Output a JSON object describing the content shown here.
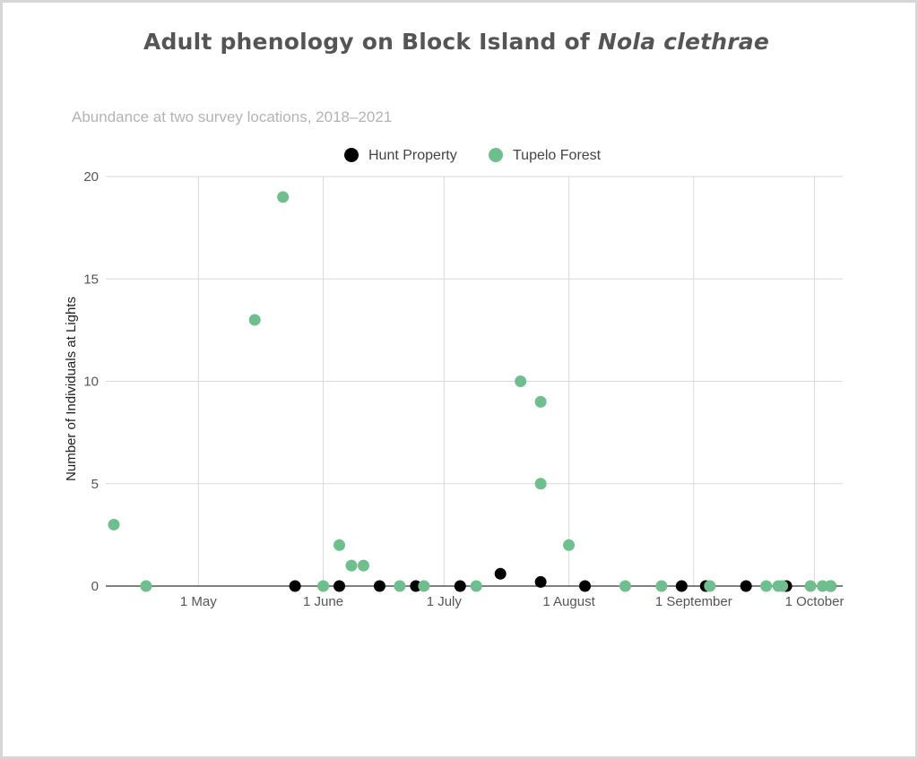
{
  "title_main": "Adult phenology on Block Island of ",
  "title_species": "Nola clethrae",
  "chart_data": {
    "type": "scatter",
    "title": "Adult phenology on Block Island of Nola clethrae",
    "subtitle": "Abundance at two survey locations, 2018–2021",
    "xlabel": "",
    "ylabel": "Number of Individuals at Lights",
    "xlim": [
      "2021-04-08",
      "2021-10-08"
    ],
    "ylim": [
      0,
      20
    ],
    "y_ticks": [
      0,
      5,
      10,
      15,
      20
    ],
    "x_ticks": [
      {
        "date": "2021-05-01",
        "label": "1 May"
      },
      {
        "date": "2021-06-01",
        "label": "1 June"
      },
      {
        "date": "2021-07-01",
        "label": "1 July"
      },
      {
        "date": "2021-08-01",
        "label": "1 August"
      },
      {
        "date": "2021-09-01",
        "label": "1 September"
      },
      {
        "date": "2021-10-01",
        "label": "1 October"
      }
    ],
    "grid": true,
    "legend_position": "top",
    "series": [
      {
        "name": "Hunt Property",
        "color": "#000000",
        "points": [
          {
            "x": "2021-05-25",
            "y": 0
          },
          {
            "x": "2021-06-05",
            "y": 0
          },
          {
            "x": "2021-06-15",
            "y": 0
          },
          {
            "x": "2021-06-24",
            "y": 0
          },
          {
            "x": "2021-07-05",
            "y": 0
          },
          {
            "x": "2021-07-15",
            "y": 0.6
          },
          {
            "x": "2021-07-25",
            "y": 0.2
          },
          {
            "x": "2021-08-05",
            "y": 0
          },
          {
            "x": "2021-08-29",
            "y": 0
          },
          {
            "x": "2021-09-04",
            "y": 0
          },
          {
            "x": "2021-09-14",
            "y": 0
          },
          {
            "x": "2021-09-24",
            "y": 0
          },
          {
            "x": "2021-10-05",
            "y": 0
          }
        ]
      },
      {
        "name": "Tupelo Forest",
        "color": "#6fbf8e",
        "points": [
          {
            "x": "2021-04-10",
            "y": 3
          },
          {
            "x": "2021-04-18",
            "y": 0
          },
          {
            "x": "2021-05-15",
            "y": 13
          },
          {
            "x": "2021-05-22",
            "y": 19
          },
          {
            "x": "2021-06-01",
            "y": 0
          },
          {
            "x": "2021-06-05",
            "y": 2
          },
          {
            "x": "2021-06-08",
            "y": 1
          },
          {
            "x": "2021-06-11",
            "y": 1
          },
          {
            "x": "2021-06-20",
            "y": 0
          },
          {
            "x": "2021-06-26",
            "y": 0
          },
          {
            "x": "2021-07-09",
            "y": 0
          },
          {
            "x": "2021-07-20",
            "y": 10
          },
          {
            "x": "2021-07-25",
            "y": 9
          },
          {
            "x": "2021-07-25",
            "y": 5
          },
          {
            "x": "2021-08-01",
            "y": 2
          },
          {
            "x": "2021-08-15",
            "y": 0
          },
          {
            "x": "2021-08-24",
            "y": 0
          },
          {
            "x": "2021-09-05",
            "y": 0
          },
          {
            "x": "2021-09-19",
            "y": 0
          },
          {
            "x": "2021-09-22",
            "y": 0
          },
          {
            "x": "2021-09-23",
            "y": 0
          },
          {
            "x": "2021-09-30",
            "y": 0
          },
          {
            "x": "2021-10-03",
            "y": 0
          },
          {
            "x": "2021-10-05",
            "y": 0
          }
        ]
      }
    ]
  }
}
